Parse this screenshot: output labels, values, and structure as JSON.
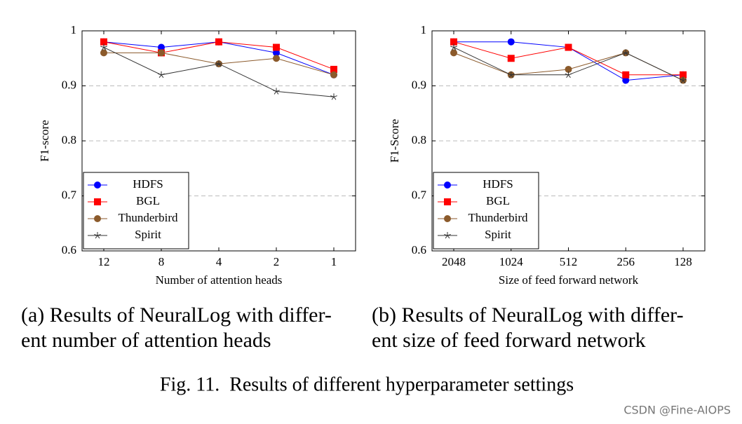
{
  "chart_data": [
    {
      "type": "line",
      "ylabel": "F1-score",
      "xlabel": "Number of attention heads",
      "categories": [
        "12",
        "8",
        "4",
        "2",
        "1"
      ],
      "ylim": [
        0.6,
        1
      ],
      "yticks": [
        0.6,
        0.7,
        0.8,
        0.9,
        1
      ],
      "grid": true,
      "legend": "lower left",
      "series": [
        {
          "name": "HDFS",
          "color": "#0000ff",
          "marker": "circle",
          "values": [
            0.98,
            0.97,
            0.98,
            0.96,
            0.92
          ]
        },
        {
          "name": "BGL",
          "color": "#ff0000",
          "marker": "square",
          "values": [
            0.98,
            0.96,
            0.98,
            0.97,
            0.93
          ]
        },
        {
          "name": "Thunderbird",
          "color": "#8b5a2b",
          "marker": "circle",
          "values": [
            0.96,
            0.96,
            0.94,
            0.95,
            0.92
          ]
        },
        {
          "name": "Spirit",
          "color": "#333333",
          "marker": "star",
          "values": [
            0.97,
            0.92,
            0.94,
            0.89,
            0.88
          ]
        }
      ],
      "caption": [
        "(a) Results of NeuralLog with differ-",
        "ent number of attention heads"
      ]
    },
    {
      "type": "line",
      "ylabel": "F1-Score",
      "xlabel": "Size of feed forward network",
      "categories": [
        "2048",
        "1024",
        "512",
        "256",
        "128"
      ],
      "ylim": [
        0.6,
        1
      ],
      "yticks": [
        0.6,
        0.7,
        0.8,
        0.9,
        1
      ],
      "grid": true,
      "legend": "lower left",
      "series": [
        {
          "name": "HDFS",
          "color": "#0000ff",
          "marker": "circle",
          "values": [
            0.98,
            0.98,
            0.97,
            0.91,
            0.92
          ]
        },
        {
          "name": "BGL",
          "color": "#ff0000",
          "marker": "square",
          "values": [
            0.98,
            0.95,
            0.97,
            0.92,
            0.92
          ]
        },
        {
          "name": "Thunderbird",
          "color": "#8b5a2b",
          "marker": "circle",
          "values": [
            0.96,
            0.92,
            0.93,
            0.96,
            0.91
          ]
        },
        {
          "name": "Spirit",
          "color": "#333333",
          "marker": "star",
          "values": [
            0.97,
            0.92,
            0.92,
            0.96,
            0.91
          ]
        }
      ],
      "caption": [
        "(b) Results of NeuralLog with differ-",
        "ent size of feed forward network"
      ]
    }
  ],
  "figure_caption": "Fig. 11.  Results of different hyperparameter settings",
  "watermark": "CSDN @Fine-AIOPS"
}
